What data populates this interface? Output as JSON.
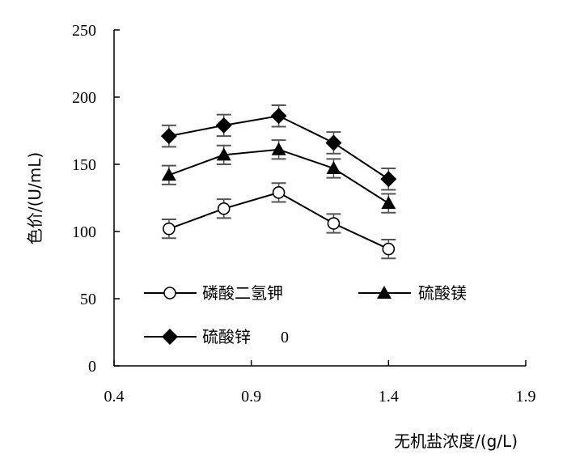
{
  "chart_data": {
    "type": "line",
    "xlabel": "无机盐浓度/(g/L)",
    "ylabel": "色价/(U/mL)",
    "xlim": [
      0.4,
      1.9
    ],
    "ylim": [
      0,
      250
    ],
    "x_ticks": [
      "0.4",
      "0.9",
      "1.4",
      "1.9"
    ],
    "x_tick_values": [
      0.4,
      0.9,
      1.4,
      1.9
    ],
    "y_ticks": [
      "0",
      "50",
      "100",
      "150",
      "200",
      "250"
    ],
    "y_tick_values": [
      0,
      50,
      100,
      150,
      200,
      250
    ],
    "grid": false,
    "legend_position": "bottom-left",
    "x": [
      0.6,
      0.8,
      1.0,
      1.2,
      1.4
    ],
    "series": [
      {
        "name": "磷酸二氢钾",
        "marker": "circle-open",
        "values": [
          102,
          117,
          129,
          106,
          87
        ],
        "errors": [
          7,
          7,
          7,
          7,
          7
        ]
      },
      {
        "name": "硫酸镁",
        "marker": "triangle-filled",
        "values": [
          142,
          157,
          161,
          147,
          121
        ],
        "errors": [
          7,
          7,
          7,
          7,
          7
        ]
      },
      {
        "name": "硫酸锌",
        "marker": "diamond-filled",
        "values": [
          171,
          179,
          186,
          166,
          139
        ],
        "errors": [
          8,
          8,
          8,
          8,
          8
        ]
      }
    ],
    "legend_extra_text": "0"
  }
}
